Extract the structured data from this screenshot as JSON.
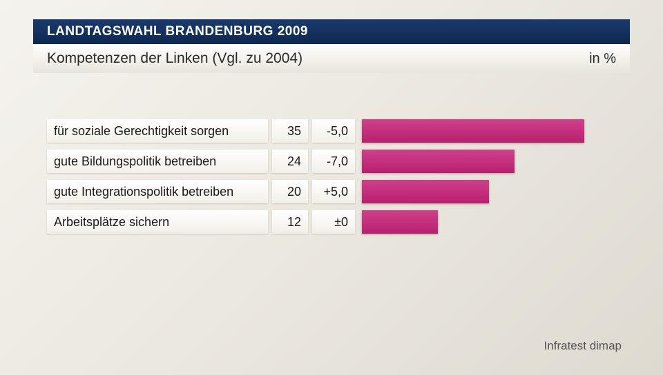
{
  "header": {
    "title": "LANDTAGSWAHL BRANDENBURG 2009",
    "subtitle": "Kompetenzen der Linken (Vgl. zu 2004)",
    "unit": "in %",
    "band_color": "#0d2850",
    "text_color": "#ffffff"
  },
  "chart": {
    "type": "bar",
    "bar_color": "#b8206e",
    "bar_max_value": 40,
    "cell_bg": "#ffffff",
    "label_fontsize": 18,
    "rows": [
      {
        "label": "für soziale Gerechtigkeit sorgen",
        "value": 35,
        "change": "-5,0"
      },
      {
        "label": "gute Bildungspolitik betreiben",
        "value": 24,
        "change": "-7,0"
      },
      {
        "label": "gute Integrationspolitik betreiben",
        "value": 20,
        "change": "+5,0"
      },
      {
        "label": "Arbeitsplätze sichern",
        "value": 12,
        "change": "±0"
      }
    ]
  },
  "source": "Infratest dimap",
  "background_gradient": [
    "#f5f3ee",
    "#dedad0"
  ]
}
